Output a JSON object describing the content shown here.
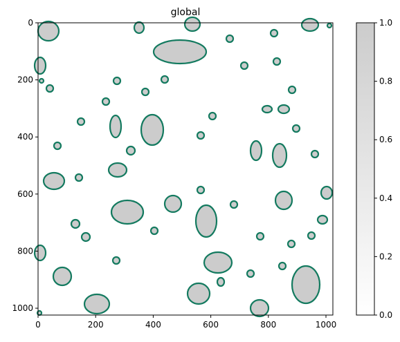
{
  "chart_data": {
    "type": "image",
    "title": "global",
    "xlim": [
      0,
      1024
    ],
    "ylim": [
      1024,
      0
    ],
    "xticks": [
      0,
      200,
      400,
      600,
      800,
      1000
    ],
    "yticks": [
      0,
      200,
      400,
      600,
      800,
      1000
    ],
    "colorbar": {
      "lim": [
        0,
        1
      ],
      "colors": [
        "#ffffff",
        "#cccccc"
      ],
      "ticks": [
        {
          "value": 0,
          "label": "0.0"
        },
        {
          "value": 0.2,
          "label": "0.2"
        },
        {
          "value": 0.4,
          "label": "0.4"
        },
        {
          "value": 0.6,
          "label": "0.6"
        },
        {
          "value": 0.8,
          "label": "0.8"
        },
        {
          "value": 1,
          "label": "1.0"
        }
      ]
    },
    "contour_color": "#137a5f"
  }
}
